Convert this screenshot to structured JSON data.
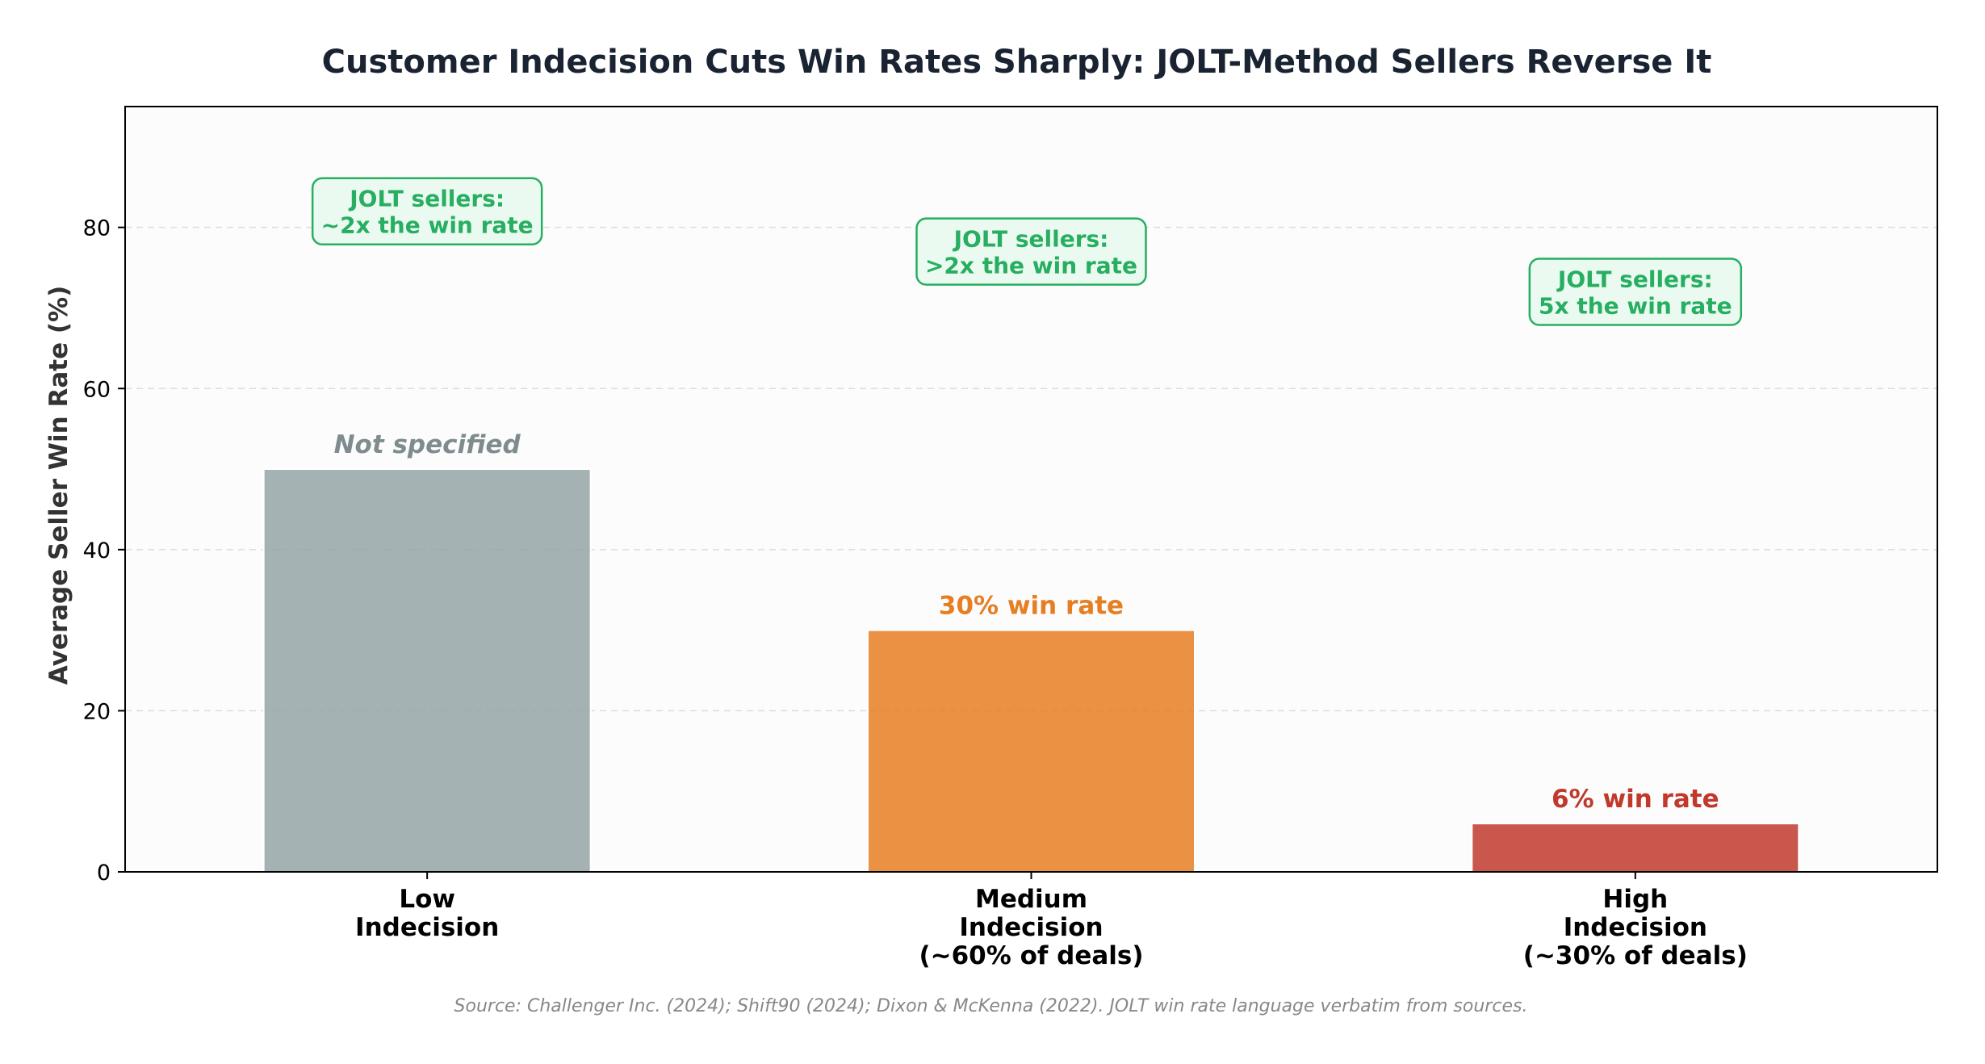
{
  "chart_data": {
    "type": "bar",
    "title": "Customer Indecision Cuts Win Rates Sharply: JOLT-Method Sellers Reverse It",
    "ylabel": "Average Seller Win Rate (%)",
    "xlabel": "",
    "ylim": [
      0,
      95
    ],
    "yticks": [
      0,
      20,
      40,
      60,
      80
    ],
    "grid": "y-dashed",
    "categories": [
      [
        "Low",
        "Indecision"
      ],
      [
        "Medium",
        "Indecision",
        "(~60% of deals)"
      ],
      [
        "High",
        "Indecision",
        "(~30% of deals)"
      ]
    ],
    "values": [
      50,
      30,
      6
    ],
    "bar_colors": [
      "#95a5a6",
      "#e67e22",
      "#c0392b"
    ],
    "value_labels": [
      "Not specified",
      "30% win rate",
      "6% win rate"
    ],
    "value_label_colors": [
      "#7f8c8d",
      "#e67e22",
      "#c0392b"
    ],
    "value_label_italic": [
      true,
      false,
      false
    ],
    "annotations": [
      {
        "lines": [
          "JOLT sellers:",
          "~2x the win rate"
        ],
        "y": 82
      },
      {
        "lines": [
          "JOLT sellers:",
          ">2x the win rate"
        ],
        "y": 77
      },
      {
        "lines": [
          "JOLT sellers:",
          "5x the win rate"
        ],
        "y": 72
      }
    ],
    "annotation_color": "#27ae60",
    "annotation_fill": "#eafaf1",
    "source": "Source: Challenger Inc. (2024); Shift90 (2024); Dixon & McKenna (2022). JOLT win rate language verbatim from sources."
  }
}
